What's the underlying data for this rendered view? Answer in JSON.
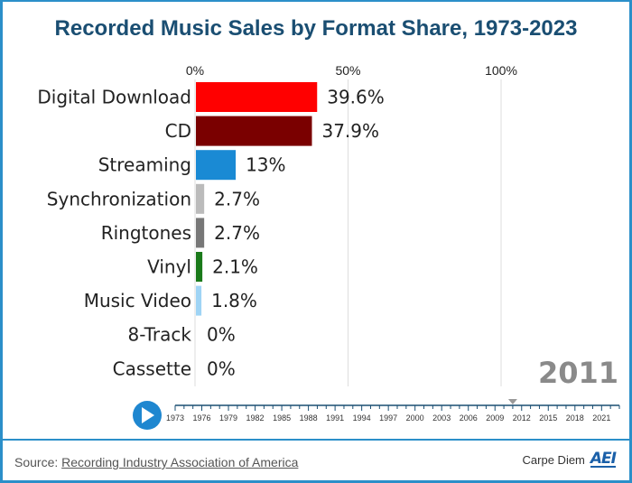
{
  "title": "Recorded Music Sales by Format Share, 1973-2023",
  "current_year": "2011",
  "source": {
    "prefix": "Source: ",
    "link_text": "Recording Industry Association of America"
  },
  "brand": {
    "text": "Carpe Diem",
    "logo": "AEI"
  },
  "colors": {
    "frame": "#2b8fc9",
    "title": "#1a4e72",
    "play_button": "#1f87d0"
  },
  "controls": {
    "play_icon": "play-icon"
  },
  "timeline": {
    "years": [
      "1973",
      "1976",
      "1979",
      "1982",
      "1985",
      "1988",
      "1991",
      "1994",
      "1997",
      "2000",
      "2003",
      "2006",
      "2009",
      "2012",
      "2015",
      "2018",
      "2021"
    ],
    "range": [
      1973,
      2023
    ],
    "current": 2011
  },
  "chart_data": {
    "type": "bar",
    "orientation": "horizontal",
    "title": "Recorded Music Sales by Format Share, 1973-2023",
    "xlim": [
      0,
      100
    ],
    "x_ticks": [
      0,
      50,
      100
    ],
    "x_tick_labels": [
      "0%",
      "50%",
      "100%"
    ],
    "grid": true,
    "categories": [
      "Digital Download",
      "CD",
      "Streaming",
      "Synchronization",
      "Ringtones",
      "Vinyl",
      "Music Video",
      "8-Track",
      "Cassette"
    ],
    "values": [
      39.6,
      37.9,
      13,
      2.7,
      2.7,
      2.1,
      1.8,
      0,
      0
    ],
    "value_labels": [
      "39.6%",
      "37.9%",
      "13%",
      "2.7%",
      "2.7%",
      "2.1%",
      "1.8%",
      "0%",
      "0%"
    ],
    "bar_colors": [
      "#ff0000",
      "#7a0000",
      "#1a8ad4",
      "#bbbbbb",
      "#777777",
      "#1a7a1a",
      "#9fd4f5",
      "#cccccc",
      "#cccccc"
    ]
  }
}
